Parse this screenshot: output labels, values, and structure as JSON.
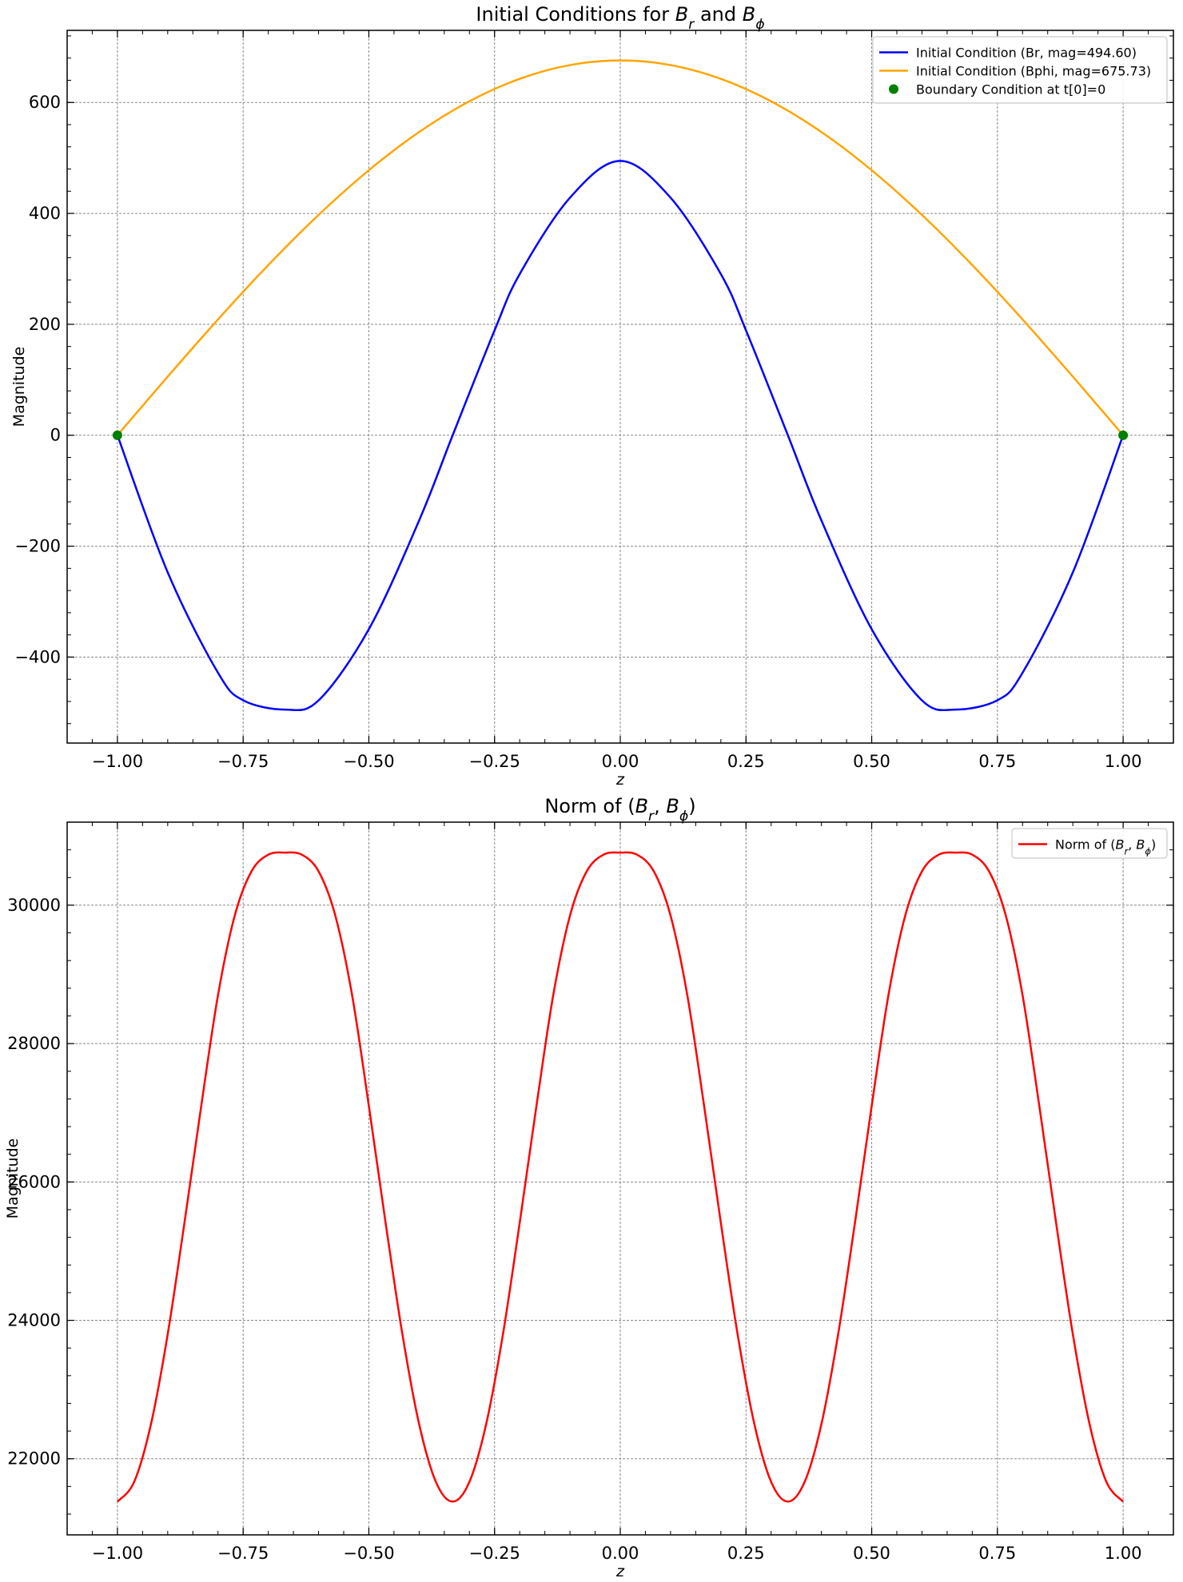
{
  "chart_data": [
    {
      "type": "line",
      "title_parts": [
        "Initial Conditions for ",
        "B",
        "r",
        " and ",
        "B",
        "ϕ"
      ],
      "xlabel": "z",
      "ylabel": "Magnitude",
      "xlim": [
        -1.1,
        1.1
      ],
      "ylim": [
        -555,
        730
      ],
      "xticks": [
        -1.0,
        -0.75,
        -0.5,
        -0.25,
        0.0,
        0.25,
        0.5,
        0.75,
        1.0
      ],
      "xtick_labels": [
        "−1.00",
        "−0.75",
        "−0.50",
        "−0.25",
        "0.00",
        "0.25",
        "0.50",
        "0.75",
        "1.00"
      ],
      "yticks": [
        -400,
        -200,
        0,
        200,
        400,
        600
      ],
      "ytick_labels": [
        "−400",
        "−200",
        "0",
        "200",
        "400",
        "600"
      ],
      "grid": true,
      "legend_position": "top-right",
      "series": [
        {
          "name": "Initial Condition (Br, mag=494.60)",
          "kind": "line",
          "color": "#0000ff",
          "x": [
            -1.0,
            -0.9,
            -0.8,
            -0.75,
            -0.6667,
            -0.6,
            -0.5,
            -0.4,
            -0.3333,
            -0.25,
            -0.2,
            -0.1,
            0.0,
            0.1,
            0.2,
            0.25,
            0.3333,
            0.4,
            0.5,
            0.6,
            0.6667,
            0.75,
            0.8,
            0.9,
            1.0
          ],
          "y": [
            0,
            -247.3,
            -428.3,
            -477.8,
            -494.6,
            -478.1,
            -349.7,
            -153.6,
            0,
            189.1,
            290.7,
            428.3,
            494.6,
            428.3,
            290.7,
            189.1,
            0,
            -153.6,
            -349.7,
            -478.1,
            -494.6,
            -477.8,
            -428.3,
            -247.3,
            0
          ]
        },
        {
          "name": "Initial Condition (Bphi, mag=675.73)",
          "kind": "line",
          "color": "#ffa500",
          "x": [
            -1.0,
            -0.9,
            -0.8,
            -0.7,
            -0.6,
            -0.5,
            -0.4,
            -0.3,
            -0.2,
            -0.1,
            0.0,
            0.1,
            0.2,
            0.3,
            0.4,
            0.5,
            0.6,
            0.7,
            0.8,
            0.9,
            1.0
          ],
          "y": [
            0,
            105.7,
            208.8,
            306.8,
            397.2,
            477.8,
            546.7,
            602.1,
            642.6,
            667.4,
            675.73,
            667.4,
            642.6,
            602.1,
            546.7,
            477.8,
            397.2,
            306.8,
            208.8,
            105.7,
            0
          ]
        },
        {
          "name": "Boundary Condition at t[0]=0",
          "kind": "scatter",
          "color": "#008000",
          "x": [
            -1.0,
            1.0
          ],
          "y": [
            0,
            0
          ]
        }
      ]
    },
    {
      "type": "line",
      "title_parts": [
        "Norm of (",
        "B",
        "r",
        ", ",
        "B",
        "ϕ",
        ")"
      ],
      "xlabel": "z",
      "ylabel": "Magnitude",
      "xlim": [
        -1.1,
        1.1
      ],
      "ylim": [
        20900,
        31200
      ],
      "xticks": [
        -1.0,
        -0.75,
        -0.5,
        -0.25,
        0.0,
        0.25,
        0.5,
        0.75,
        1.0
      ],
      "xtick_labels": [
        "−1.00",
        "−0.75",
        "−0.50",
        "−0.25",
        "0.00",
        "0.25",
        "0.50",
        "0.75",
        "1.00"
      ],
      "yticks": [
        22000,
        24000,
        26000,
        28000,
        30000
      ],
      "ytick_labels": [
        "22000",
        "24000",
        "26000",
        "28000",
        "30000"
      ],
      "grid": true,
      "legend_position": "top-right",
      "series": [
        {
          "name_parts": [
            "Norm of (",
            "B",
            "r",
            ", ",
            "B",
            "ϕ",
            ")"
          ],
          "kind": "line",
          "color": "#ff0000",
          "x": [
            -1.0,
            -0.9667,
            -0.9333,
            -0.9,
            -0.8667,
            -0.8333,
            -0.8,
            -0.7667,
            -0.7333,
            -0.7,
            -0.6667,
            -0.6333,
            -0.6,
            -0.5667,
            -0.5333,
            -0.5,
            -0.4667,
            -0.4333,
            -0.4,
            -0.3667,
            -0.3333,
            -0.3,
            -0.2667,
            -0.2333,
            -0.2,
            -0.1667,
            -0.1333,
            -0.1,
            -0.0667,
            -0.0333,
            0.0,
            0.0333,
            0.0667,
            0.1,
            0.1333,
            0.1667,
            0.2,
            0.2333,
            0.2667,
            0.3,
            0.3333,
            0.3667,
            0.4,
            0.4333,
            0.4667,
            0.5,
            0.5333,
            0.5667,
            0.6,
            0.6333,
            0.6667,
            0.7,
            0.7333,
            0.7667,
            0.8,
            0.8333,
            0.8667,
            0.9,
            0.9333,
            0.9667,
            1.0
          ],
          "y": [
            21380,
            21666,
            22500,
            23800,
            25410,
            27100,
            28700,
            29850,
            30490,
            30730,
            30760,
            30730,
            30490,
            29850,
            28700,
            27100,
            25410,
            23800,
            22500,
            21666,
            21380,
            21666,
            22500,
            23800,
            25410,
            27100,
            28700,
            29850,
            30490,
            30730,
            30760,
            30730,
            30490,
            29850,
            28700,
            27100,
            25410,
            23800,
            22500,
            21666,
            21380,
            21666,
            22500,
            23800,
            25410,
            27100,
            28700,
            29850,
            30490,
            30730,
            30760,
            30730,
            30490,
            29850,
            28700,
            27100,
            25410,
            23800,
            22500,
            21666,
            21380
          ]
        }
      ]
    }
  ]
}
